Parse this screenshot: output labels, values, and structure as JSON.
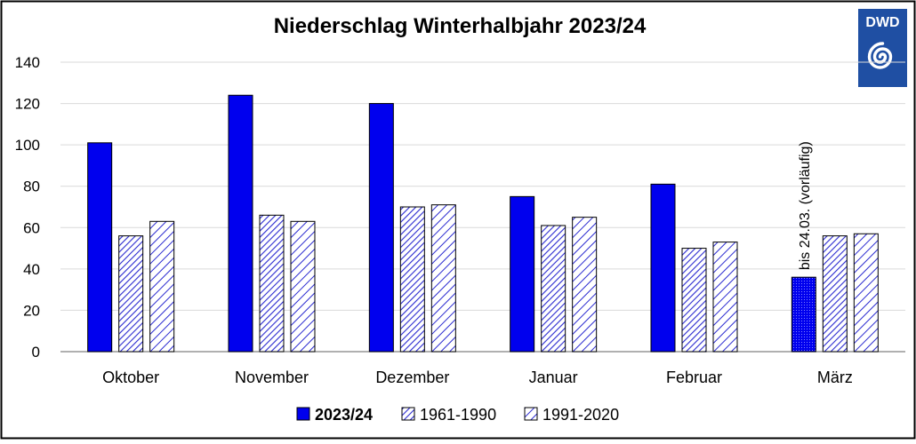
{
  "chart_data": {
    "type": "bar",
    "title": "Niederschlag Winterhalbjahr 2023/24",
    "xlabel": "",
    "ylabel": "",
    "ylim": [
      0,
      140
    ],
    "yticks": [
      0,
      20,
      40,
      60,
      80,
      100,
      120,
      140
    ],
    "grid": true,
    "legend_position": "bottom",
    "categories": [
      "Oktober",
      "November",
      "Dezember",
      "Januar",
      "Februar",
      "März"
    ],
    "series": [
      {
        "name": "2023/24",
        "values": [
          101,
          124,
          120,
          75,
          81,
          36
        ],
        "color": "#0000ee",
        "pattern": "solid"
      },
      {
        "name": "1961-1990",
        "values": [
          56,
          66,
          70,
          61,
          50,
          56
        ],
        "color": "#3333cc",
        "pattern": "diagonal-narrow"
      },
      {
        "name": "1991-2020",
        "values": [
          63,
          63,
          71,
          65,
          53,
          57
        ],
        "color": "#3333cc",
        "pattern": "diagonal-wide"
      }
    ],
    "annotations": [
      {
        "text": "bis 24.03. (vorläufig)",
        "category": "März",
        "series": "2023/24"
      }
    ]
  },
  "logo": {
    "text": "DWD",
    "color": "#1f4fa3"
  }
}
